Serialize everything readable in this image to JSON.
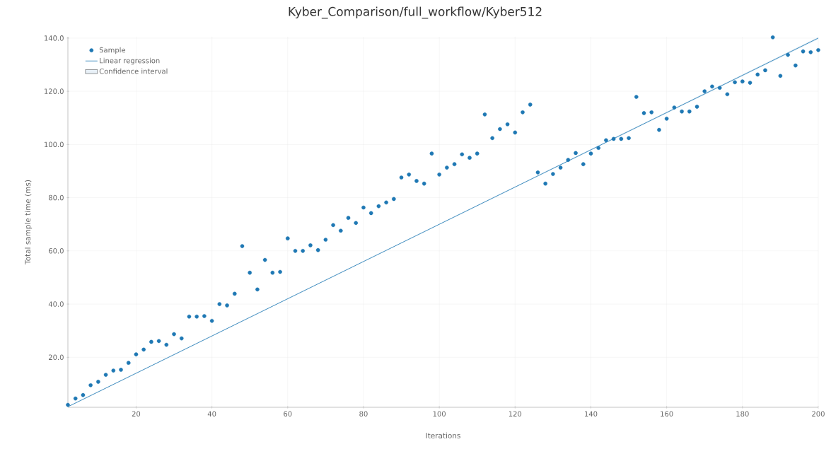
{
  "chart_data": {
    "type": "scatter",
    "title": "Kyber_Comparison/full_workflow/Kyber512",
    "xlabel": "Iterations",
    "ylabel": "Total sample time (ms)",
    "xlim": [
      2,
      200
    ],
    "ylim": [
      1.2,
      140.5
    ],
    "xticks": [
      20,
      40,
      60,
      80,
      100,
      120,
      140,
      160,
      180,
      200
    ],
    "yticks": [
      {
        "value": 20,
        "label": "20.0"
      },
      {
        "value": 40,
        "label": "40.0"
      },
      {
        "value": 60,
        "label": "60.0"
      },
      {
        "value": 80,
        "label": "80.0"
      },
      {
        "value": 100,
        "label": "100.0"
      },
      {
        "value": 120,
        "label": "120.0"
      },
      {
        "value": 140,
        "label": "140.0"
      }
    ],
    "grid": true,
    "legend": "top left",
    "marker": "circle",
    "x": [
      2,
      4,
      6,
      8,
      10,
      12,
      14,
      16,
      18,
      20,
      22,
      24,
      26,
      28,
      30,
      32,
      34,
      36,
      38,
      40,
      42,
      44,
      46,
      48,
      50,
      52,
      54,
      56,
      58,
      60,
      62,
      64,
      66,
      68,
      70,
      72,
      74,
      76,
      78,
      80,
      82,
      84,
      86,
      88,
      90,
      92,
      94,
      96,
      98,
      100,
      102,
      104,
      106,
      108,
      110,
      112,
      114,
      116,
      118,
      120,
      122,
      124,
      126,
      128,
      130,
      132,
      134,
      136,
      138,
      140,
      142,
      144,
      146,
      148,
      150,
      152,
      154,
      156,
      158,
      160,
      162,
      164,
      166,
      168,
      170,
      172,
      174,
      176,
      178,
      180,
      182,
      184,
      186,
      188,
      190,
      192,
      194,
      196,
      198,
      200
    ],
    "series": [
      {
        "name": "Sample",
        "color": "#1f78b4",
        "values": [
          2.1,
          4.5,
          5.8,
          9.5,
          10.8,
          13.4,
          15.0,
          15.3,
          17.9,
          21.1,
          22.9,
          25.8,
          26.1,
          24.7,
          28.7,
          27.1,
          35.3,
          35.3,
          35.5,
          33.7,
          40.0,
          39.5,
          43.9,
          61.8,
          51.8,
          45.5,
          56.6,
          51.8,
          52.1,
          64.7,
          60.0,
          60.0,
          62.1,
          60.3,
          64.2,
          69.7,
          67.6,
          72.4,
          70.5,
          76.3,
          74.2,
          76.8,
          78.2,
          79.5,
          87.6,
          88.7,
          86.3,
          85.3,
          96.6,
          88.7,
          91.3,
          92.6,
          96.3,
          95.0,
          96.6,
          111.3,
          102.4,
          105.8,
          107.6,
          104.5,
          112.1,
          115.0,
          89.5,
          85.3,
          88.9,
          91.3,
          94.2,
          96.8,
          92.6,
          96.6,
          98.7,
          101.6,
          102.1,
          102.1,
          102.4,
          117.9,
          111.8,
          112.1,
          105.5,
          109.7,
          113.9,
          112.4,
          112.4,
          114.2,
          120.0,
          121.8,
          121.3,
          118.9,
          123.4,
          123.7,
          123.2,
          126.3,
          127.9,
          140.3,
          125.8,
          133.7,
          129.7,
          135.0,
          134.7,
          135.5
        ]
      },
      {
        "name": "Linear regression",
        "type": "line",
        "marker": "none",
        "color": "#1f78b4",
        "x": [
          2,
          100,
          200
        ],
        "values": [
          1.4,
          70.0,
          140.0
        ],
        "lower": [
          1.2,
          69.8,
          139.6
        ],
        "upper": [
          1.6,
          70.2,
          140.4
        ]
      },
      {
        "name": "Confidence interval",
        "type": "area",
        "color": "#e8f0f7",
        "values": [
          null,
          null,
          null,
          null,
          null,
          null,
          null,
          null,
          null,
          null,
          null,
          null,
          null,
          null,
          null,
          null,
          null,
          null,
          null,
          null,
          null,
          null,
          null,
          null,
          null,
          null,
          null,
          null,
          null,
          null,
          null,
          null,
          null,
          null,
          null,
          null,
          null,
          null,
          null,
          null,
          null,
          null,
          null,
          null,
          null,
          null,
          null,
          null,
          null,
          null,
          null,
          null,
          null,
          null,
          null,
          null,
          null,
          null,
          null,
          null,
          null,
          null,
          null,
          null,
          null,
          null,
          null,
          null,
          null,
          null,
          null,
          null,
          null,
          null,
          null,
          null,
          null,
          null,
          null,
          null,
          null,
          null,
          null,
          null,
          null,
          null,
          null,
          null,
          null,
          null,
          null,
          null,
          null,
          null,
          null,
          null,
          null,
          null,
          null,
          null
        ]
      }
    ]
  }
}
